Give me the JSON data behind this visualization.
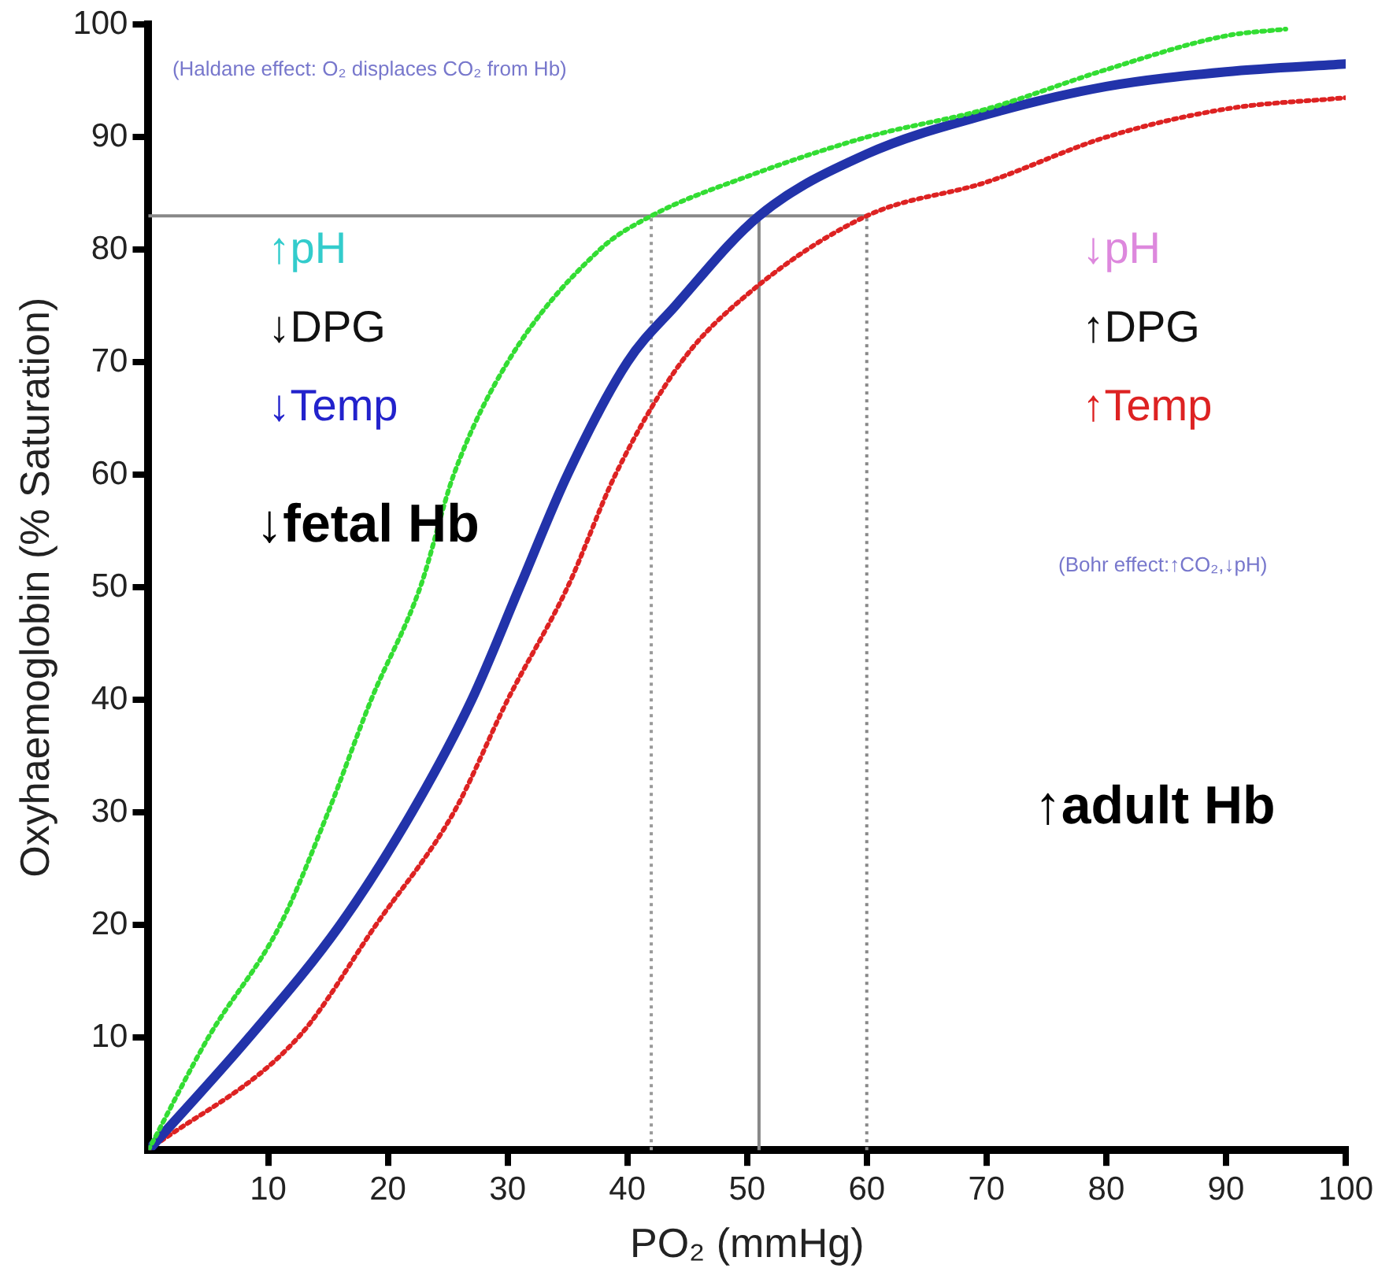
{
  "chart_data": {
    "type": "line",
    "xlabel": "PO₂ (mmHg)",
    "ylabel": "Oxyhaemoglobin (% Saturation)",
    "xlim": [
      0,
      100
    ],
    "ylim": [
      0,
      100
    ],
    "xticks": [
      10,
      20,
      30,
      40,
      50,
      60,
      70,
      80,
      90,
      100
    ],
    "yticks": [
      10,
      20,
      30,
      40,
      50,
      60,
      70,
      80,
      90,
      100
    ],
    "grid": false,
    "legend": false,
    "marker": "none",
    "series": [
      {
        "color": "#33dd33",
        "line_style": "dotted",
        "x": [
          0,
          5,
          11,
          15,
          18.6,
          22.7,
          25.5,
          30,
          37.7,
          42,
          50,
          60,
          70,
          80,
          90,
          95
        ],
        "values": [
          0,
          10,
          20,
          30,
          40,
          50,
          60,
          70,
          80,
          83,
          86.5,
          90,
          92.5,
          96,
          99,
          99.6
        ]
      },
      {
        "color": "#2233aa",
        "line_style": "solid",
        "x": [
          0,
          8.4,
          16,
          22,
          27,
          31,
          35,
          40,
          44,
          51,
          60,
          70,
          80,
          90,
          100
        ],
        "values": [
          0,
          10,
          20,
          30,
          40,
          50,
          60,
          70,
          75,
          83,
          88.5,
          92,
          94.5,
          95.8,
          96.5
        ]
      },
      {
        "color": "#dd2222",
        "line_style": "dotted",
        "x": [
          0,
          12.5,
          19,
          25.5,
          30,
          35,
          39,
          44.5,
          50,
          60,
          70,
          80,
          90,
          100
        ],
        "values": [
          0,
          10,
          20,
          30,
          40,
          50,
          60,
          70,
          76,
          83,
          86,
          90,
          92.5,
          93.5
        ]
      }
    ],
    "ref_lines": [
      {
        "axis": "y",
        "value": 83,
        "color": "#888888",
        "line_style": "solid"
      },
      {
        "axis": "x",
        "value": 42,
        "color": "#999999",
        "line_style": "dotted"
      },
      {
        "axis": "x",
        "value": 51,
        "color": "#888888",
        "line_style": "solid"
      },
      {
        "axis": "x",
        "value": 60,
        "color": "#888888",
        "line_style": "dotted"
      }
    ],
    "annotations": [
      "(Haldane effect: O₂ displaces CO₂ from Hb)",
      "↑pH",
      "↓DPG",
      "↓Temp",
      "↓fetal Hb",
      "↓pH",
      "↑DPG",
      "↑Temp",
      "(Bohr effect:↑CO₂,↓pH)",
      "↑adult Hb"
    ]
  }
}
